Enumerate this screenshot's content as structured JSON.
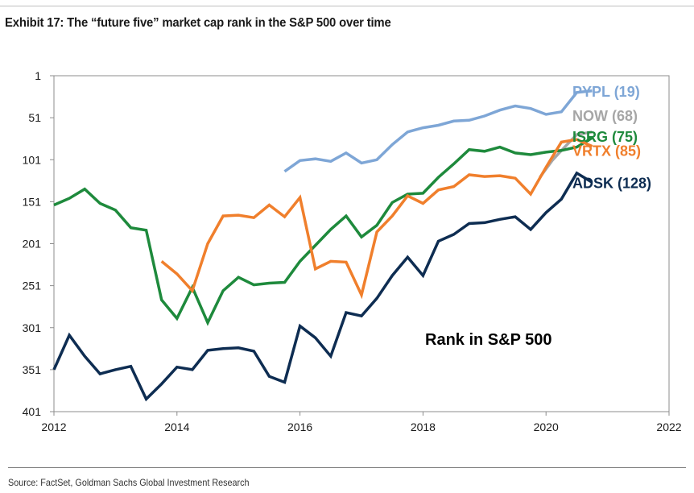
{
  "header": {
    "title": "Exhibit 17: The “future five” market cap rank in the S&P 500 over time"
  },
  "footer": {
    "source": "Source: FactSet, Goldman Sachs Global Investment Research"
  },
  "chart_data": {
    "type": "line",
    "title": "Exhibit 17: The “future five” market cap rank in the S&P 500 over time",
    "annotation": "Rank in S&P 500",
    "xlabel": "",
    "ylabel": "",
    "xlim": [
      2012,
      2022
    ],
    "ylim": [
      401,
      1
    ],
    "y_inverted": true,
    "xticks": [
      "2012",
      "2014",
      "2016",
      "2018",
      "2020",
      "2022"
    ],
    "yticks": [
      "1",
      "51",
      "101",
      "151",
      "201",
      "251",
      "301",
      "351",
      "401"
    ],
    "legend": "right-side labels at series ends",
    "series": [
      {
        "name": "PYPL",
        "label": "PYPL (19)",
        "color": "#7ea6d6",
        "x": [
          2015.75,
          2016.0,
          2016.25,
          2016.5,
          2016.75,
          2017.0,
          2017.25,
          2017.5,
          2017.75,
          2018.0,
          2018.25,
          2018.5,
          2018.75,
          2019.0,
          2019.25,
          2019.5,
          2019.75,
          2020.0,
          2020.25,
          2020.5,
          2020.75
        ],
        "values": [
          115,
          102,
          100,
          103,
          93,
          105,
          101,
          83,
          68,
          63,
          60,
          55,
          54,
          49,
          42,
          37,
          40,
          47,
          44,
          21,
          19
        ]
      },
      {
        "name": "NOW",
        "label": "NOW (68)",
        "color": "#a6a6a6",
        "x": [
          2019.9,
          2020.1,
          2020.25,
          2020.5,
          2020.75
        ],
        "values": [
          122,
          102,
          90,
          71,
          68
        ]
      },
      {
        "name": "ISRG",
        "label": "ISRG (75)",
        "color": "#1e8a3c",
        "x": [
          2012.0,
          2012.25,
          2012.5,
          2012.75,
          2013.0,
          2013.25,
          2013.5,
          2013.75,
          2014.0,
          2014.25,
          2014.5,
          2014.75,
          2015.0,
          2015.25,
          2015.5,
          2015.75,
          2016.0,
          2016.25,
          2016.5,
          2016.75,
          2017.0,
          2017.25,
          2017.5,
          2017.75,
          2018.0,
          2018.25,
          2018.5,
          2018.75,
          2019.0,
          2019.25,
          2019.5,
          2019.75,
          2020.0,
          2020.25,
          2020.5,
          2020.75
        ],
        "values": [
          155,
          147,
          136,
          153,
          161,
          182,
          185,
          268,
          290,
          253,
          295,
          257,
          241,
          250,
          248,
          247,
          222,
          203,
          184,
          168,
          193,
          179,
          152,
          142,
          141,
          122,
          106,
          89,
          91,
          86,
          93,
          95,
          92,
          90,
          86,
          75
        ]
      },
      {
        "name": "VRTX",
        "label": "VRTX (85)",
        "color": "#f07f2c",
        "x": [
          2013.75,
          2014.0,
          2014.25,
          2014.5,
          2014.75,
          2015.0,
          2015.25,
          2015.5,
          2015.75,
          2016.0,
          2016.25,
          2016.5,
          2016.75,
          2017.0,
          2017.25,
          2017.5,
          2017.75,
          2018.0,
          2018.25,
          2018.5,
          2018.75,
          2019.0,
          2019.25,
          2019.5,
          2019.75,
          2020.0,
          2020.25,
          2020.5,
          2020.75
        ],
        "values": [
          222,
          237,
          257,
          201,
          168,
          167,
          170,
          155,
          169,
          146,
          231,
          222,
          223,
          262,
          187,
          168,
          144,
          153,
          137,
          133,
          119,
          121,
          120,
          123,
          142,
          110,
          80,
          77,
          85
        ]
      },
      {
        "name": "ADSK",
        "label": "ADSK (128)",
        "color": "#0e2d52",
        "x": [
          2012.0,
          2012.25,
          2012.5,
          2012.75,
          2013.0,
          2013.25,
          2013.5,
          2013.75,
          2014.0,
          2014.25,
          2014.5,
          2014.75,
          2015.0,
          2015.25,
          2015.5,
          2015.75,
          2016.0,
          2016.25,
          2016.5,
          2016.75,
          2017.0,
          2017.25,
          2017.5,
          2017.75,
          2018.0,
          2018.25,
          2018.5,
          2018.75,
          2019.0,
          2019.25,
          2019.5,
          2019.75,
          2020.0,
          2020.25,
          2020.5,
          2020.75
        ],
        "values": [
          351,
          310,
          335,
          356,
          351,
          347,
          386,
          368,
          348,
          351,
          328,
          326,
          325,
          329,
          359,
          366,
          299,
          313,
          335,
          283,
          287,
          266,
          239,
          217,
          239,
          198,
          190,
          177,
          176,
          172,
          169,
          184,
          164,
          148,
          117,
          128
        ]
      }
    ]
  }
}
